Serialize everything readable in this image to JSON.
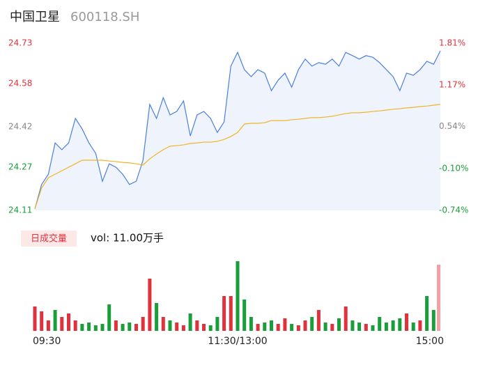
{
  "chart_data": [
    {
      "type": "line",
      "title": "中国卫星",
      "subtitle": "600118.SH",
      "x": [
        0,
        4,
        8,
        12,
        16,
        20,
        24,
        28,
        32,
        36,
        40,
        44,
        48,
        52,
        56,
        60,
        64,
        68,
        72,
        76,
        80,
        84,
        88,
        92,
        96,
        100,
        104,
        108,
        112,
        116,
        120,
        124,
        128,
        132,
        136,
        140,
        144,
        148,
        152,
        156,
        160,
        164,
        168,
        172,
        176,
        180,
        184,
        188,
        192,
        196,
        200,
        204,
        208,
        212,
        216,
        220,
        224,
        228,
        232,
        236,
        240
      ],
      "values": [
        24.115,
        24.206,
        24.244,
        24.36,
        24.335,
        24.36,
        24.451,
        24.412,
        24.36,
        24.322,
        24.218,
        24.283,
        24.27,
        24.244,
        24.206,
        24.218,
        24.296,
        24.503,
        24.451,
        24.528,
        24.464,
        24.477,
        24.516,
        24.386,
        24.464,
        24.477,
        24.451,
        24.399,
        24.438,
        24.645,
        24.696,
        24.632,
        24.606,
        24.632,
        24.619,
        24.554,
        24.593,
        24.619,
        24.567,
        24.632,
        24.671,
        24.645,
        24.658,
        24.652,
        24.671,
        24.645,
        24.696,
        24.684,
        24.671,
        24.684,
        24.678,
        24.658,
        24.632,
        24.606,
        24.554,
        24.619,
        24.611,
        24.632,
        24.663,
        24.652,
        24.702
      ],
      "avg_values": [
        24.115,
        24.193,
        24.231,
        24.244,
        24.257,
        24.27,
        24.283,
        24.296,
        24.296,
        24.296,
        24.296,
        24.293,
        24.291,
        24.288,
        24.286,
        24.283,
        24.278,
        24.301,
        24.319,
        24.335,
        24.348,
        24.35,
        24.353,
        24.358,
        24.36,
        24.363,
        24.363,
        24.366,
        24.373,
        24.384,
        24.399,
        24.43,
        24.433,
        24.433,
        24.435,
        24.443,
        24.443,
        24.443,
        24.446,
        24.448,
        24.451,
        24.454,
        24.454,
        24.456,
        24.459,
        24.464,
        24.469,
        24.472,
        24.472,
        24.474,
        24.477,
        24.479,
        24.482,
        24.485,
        24.487,
        24.49,
        24.492,
        24.495,
        24.497,
        24.5,
        24.503
      ],
      "color": "#4a7fe0",
      "avg_color": "#f0b429",
      "area_color": "#eef3fc",
      "xlim": [
        0,
        240
      ],
      "ylim": [
        24.11,
        24.73
      ],
      "yticks": [
        24.11,
        24.27,
        24.42,
        24.58,
        24.73
      ],
      "y2lim": [
        -0.74,
        1.81
      ],
      "y2ticks": [
        {
          "value": -0.74,
          "label": "-0.74%"
        },
        {
          "value": -0.1,
          "label": "-0.10%"
        },
        {
          "value": 0.54,
          "label": "0.54%"
        },
        {
          "value": 1.17,
          "label": "1.17%"
        },
        {
          "value": 1.81,
          "label": "1.81%"
        }
      ],
      "tick_colors": [
        "#1a9e3a",
        "#1a9e3a",
        "#888888",
        "#e0323c",
        "#e0323c"
      ]
    },
    {
      "type": "bar",
      "title": "日成交量",
      "subtitle": "vol: 11.00万手",
      "x": [
        0,
        4,
        8,
        12,
        16,
        20,
        24,
        28,
        32,
        36,
        40,
        44,
        48,
        52,
        56,
        60,
        64,
        68,
        72,
        76,
        80,
        84,
        88,
        92,
        96,
        100,
        104,
        108,
        112,
        116,
        120,
        124,
        128,
        132,
        136,
        140,
        144,
        148,
        152,
        156,
        160,
        164,
        168,
        172,
        176,
        180,
        184,
        188,
        192,
        196,
        200,
        204,
        208,
        212,
        216,
        220,
        224,
        228,
        232,
        236,
        240
      ],
      "values": [
        1050,
        840,
        450,
        900,
        600,
        750,
        450,
        300,
        360,
        240,
        300,
        1140,
        450,
        300,
        360,
        300,
        600,
        2250,
        1200,
        600,
        450,
        360,
        240,
        750,
        450,
        300,
        240,
        600,
        1500,
        1500,
        3000,
        1350,
        600,
        300,
        360,
        450,
        300,
        540,
        300,
        240,
        450,
        600,
        900,
        360,
        300,
        540,
        1050,
        450,
        360,
        300,
        240,
        600,
        360,
        450,
        540,
        750,
        360,
        450,
        1500,
        900,
        2850
      ],
      "colors": [
        "#e0323c",
        "#e0323c",
        "#e0323c",
        "#1a9e3a",
        "#e0323c",
        "#e0323c",
        "#e0323c",
        "#1a9e3a",
        "#1a9e3a",
        "#1a9e3a",
        "#1a9e3a",
        "#1a9e3a",
        "#e0323c",
        "#1a9e3a",
        "#1a9e3a",
        "#e0323c",
        "#e0323c",
        "#e0323c",
        "#1a9e3a",
        "#e0323c",
        "#1a9e3a",
        "#e0323c",
        "#e0323c",
        "#1a9e3a",
        "#e0323c",
        "#e0323c",
        "#1a9e3a",
        "#1a9e3a",
        "#e0323c",
        "#e0323c",
        "#1a9e3a",
        "#1a9e3a",
        "#1a9e3a",
        "#e0323c",
        "#1a9e3a",
        "#1a9e3a",
        "#e0323c",
        "#e0323c",
        "#1a9e3a",
        "#e0323c",
        "#e0323c",
        "#1a9e3a",
        "#e0323c",
        "#1a9e3a",
        "#e0323c",
        "#1a9e3a",
        "#e0323c",
        "#1a9e3a",
        "#1a9e3a",
        "#e0323c",
        "#1a9e3a",
        "#1a9e3a",
        "#1a9e3a",
        "#1a9e3a",
        "#1a9e3a",
        "#e0323c",
        "#1a9e3a",
        "#e0323c",
        "#1a9e3a",
        "#1a9e3a",
        "#f2a0a4"
      ],
      "xlim": [
        0,
        240
      ],
      "ylim": [
        0,
        3000
      ],
      "xticks": [
        {
          "value": 0,
          "label": "09:30"
        },
        {
          "value": 120,
          "label": "11:30/13:00"
        },
        {
          "value": 240,
          "label": "15:00"
        }
      ],
      "badge_color": "#fde8e8",
      "badge_text_color": "#e0323c"
    }
  ]
}
